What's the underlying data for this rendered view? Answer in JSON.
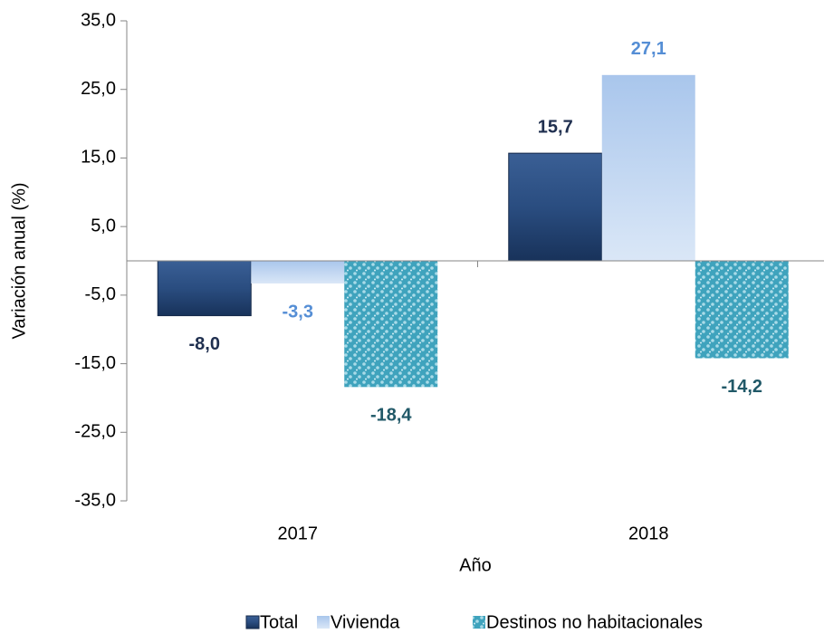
{
  "chart_data": {
    "type": "bar",
    "x_label": "Año",
    "y_label": "Variación anual (%)",
    "categories": [
      "2017",
      "2018"
    ],
    "series": [
      {
        "name": "Total",
        "color": "#1f3d6b",
        "label_color": "#1f2f4f",
        "values": [
          -8.0,
          15.7
        ],
        "value_labels": [
          "-8,0",
          "15,7"
        ]
      },
      {
        "name": "Vivienda",
        "color": "#c6d9f1",
        "label_color": "#558ed5",
        "values": [
          -3.3,
          27.1
        ],
        "value_labels": [
          "-3,3",
          "27,1"
        ]
      },
      {
        "name": "Destinos no habitacionales",
        "color": "#4bacc6",
        "label_color": "#215968",
        "values": [
          -18.4,
          -14.2
        ],
        "value_labels": [
          "-18,4",
          "-14,2"
        ]
      }
    ],
    "ylim": [
      -35,
      35
    ],
    "yticks": [
      {
        "value": -35,
        "label": "-35,0"
      },
      {
        "value": -25,
        "label": "-25,0"
      },
      {
        "value": -15,
        "label": "-15,0"
      },
      {
        "value": -5,
        "label": "-5,0"
      },
      {
        "value": 5,
        "label": "5,0"
      },
      {
        "value": 15,
        "label": "15,0"
      },
      {
        "value": 25,
        "label": "25,0"
      },
      {
        "value": 35,
        "label": "35,0"
      }
    ],
    "legend": "bottom"
  }
}
